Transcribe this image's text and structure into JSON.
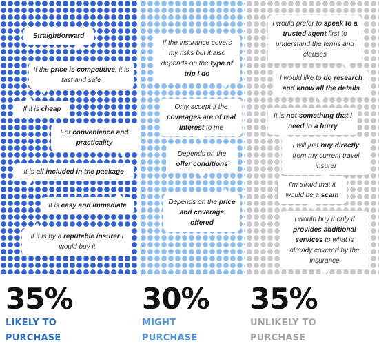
{
  "colors": {
    "likely_dots": "#2f5fd6",
    "might_dots": "#8dbcf1",
    "unlikely_dots": "#c9c9cd",
    "likely_label": "#2a6ec8",
    "might_label": "#4f93d8",
    "unlikely_label": "#a3a3a8"
  },
  "columns": [
    {
      "percent": "35%",
      "label_line1": "LIKELY TO",
      "label_line2": "PURCHASE",
      "quotes": [
        {
          "html": "<b>Straightforward</b>"
        },
        {
          "html": "If the <b>price is competitive</b>, it is fast and safe"
        },
        {
          "html": "If it is <b>cheap</b>"
        },
        {
          "html": "For <b>convenience and practicality</b>"
        },
        {
          "html": "It is <b>all included in the package</b>"
        },
        {
          "html": "It is <b>easy and immediate</b>"
        },
        {
          "html": "if it is by a <b>reputable insurer</b> I would buy it"
        }
      ]
    },
    {
      "percent": "30%",
      "label_line1": "MIGHT",
      "label_line2": "PURCHASE",
      "quotes": [
        {
          "html": "If the insurance covers my risks but it also depends on the <b>type of trip I do</b>"
        },
        {
          "html": "Only accept if the <b>coverages are of real interest</b> to me"
        },
        {
          "html": "Depends on the <b>offer conditions</b>"
        },
        {
          "html": "Depends on the <b>price and coverage offered</b>"
        }
      ]
    },
    {
      "percent": "35%",
      "label_line1": "UNLIKELY TO",
      "label_line2": "PURCHASE",
      "quotes": [
        {
          "html": "I would prefer to <b>speak to a trusted agent</b> first to understand the terms and clauses"
        },
        {
          "html": "I would like to <b>do research and know all the details</b>"
        },
        {
          "html": "It is <b>not something that I need in a hurry</b>"
        },
        {
          "html": "I will just <b>buy directly</b> from my current travel insurer"
        },
        {
          "html": "I'm afraid that it would be a <b>scam</b>"
        },
        {
          "html": "I would buy it only if <b>provides additional services</b> to what is already covered by the insurance"
        }
      ]
    }
  ]
}
